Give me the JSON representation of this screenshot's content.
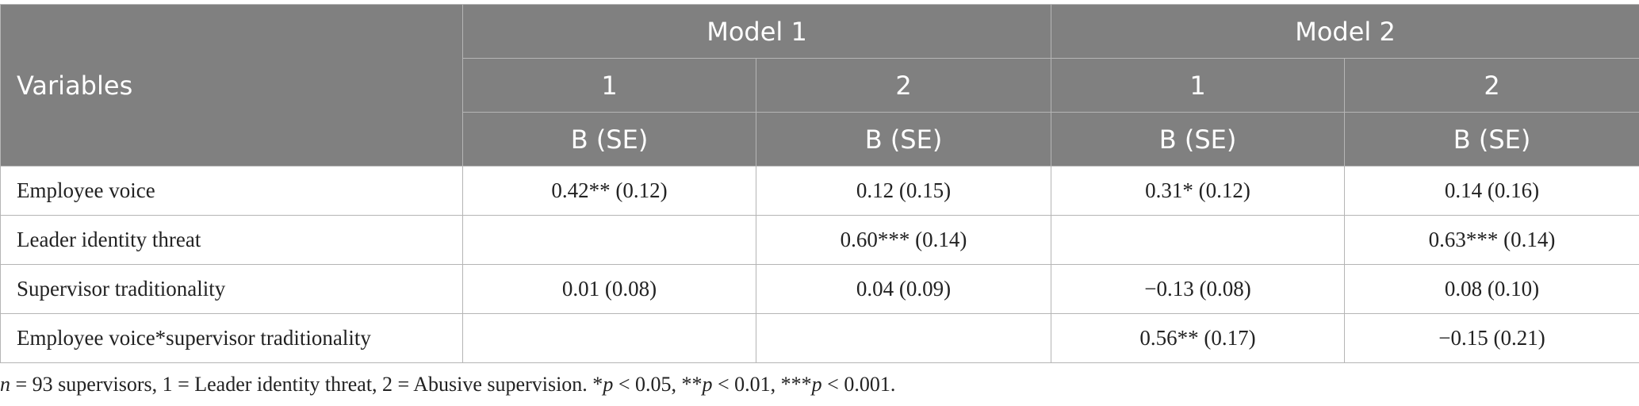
{
  "header": {
    "variables": "Variables",
    "models": [
      {
        "label": "Model 1",
        "columns": [
          {
            "number": "1",
            "stat": "B (SE)"
          },
          {
            "number": "2",
            "stat": "B (SE)"
          }
        ]
      },
      {
        "label": "Model 2",
        "columns": [
          {
            "number": "1",
            "stat": "B (SE)"
          },
          {
            "number": "2",
            "stat": "B (SE)"
          }
        ]
      }
    ]
  },
  "table": {
    "rows": [
      {
        "variable": "Employee voice",
        "cells": [
          "0.42** (0.12)",
          "0.12 (0.15)",
          "0.31* (0.12)",
          "0.14 (0.16)"
        ]
      },
      {
        "variable": "Leader identity threat",
        "cells": [
          null,
          "0.60*** (0.14)",
          null,
          "0.63*** (0.14)"
        ]
      },
      {
        "variable": "Supervisor traditionality",
        "cells": [
          "0.01 (0.08)",
          "0.04 (0.09)",
          "−0.13 (0.08)",
          "0.08 (0.10)"
        ]
      },
      {
        "variable": "Employee voice*supervisor traditionality",
        "cells": [
          null,
          null,
          "0.56** (0.17)",
          "−0.15 (0.21)"
        ]
      }
    ]
  },
  "footnote": [
    {
      "text": "n",
      "italic": true
    },
    {
      "text": " = 93 supervisors, 1 = Leader identity threat, 2 = Abusive supervision. *",
      "italic": false
    },
    {
      "text": "p",
      "italic": true
    },
    {
      "text": " < 0.05, **",
      "italic": false
    },
    {
      "text": "p",
      "italic": true
    },
    {
      "text": " < 0.01, ***",
      "italic": false
    },
    {
      "text": "p",
      "italic": true
    },
    {
      "text": " < 0.001.",
      "italic": false
    }
  ]
}
